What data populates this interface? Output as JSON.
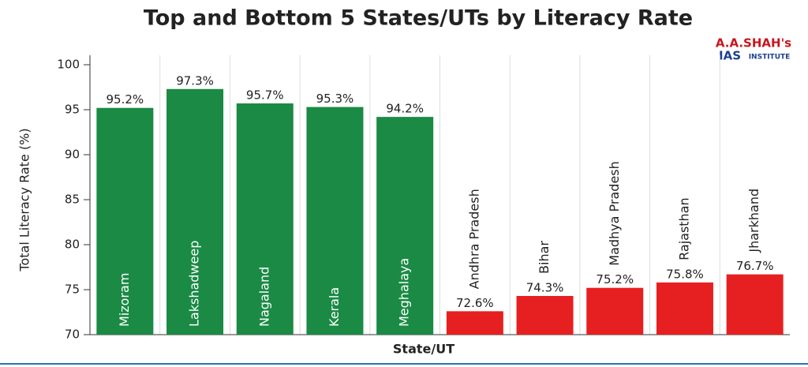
{
  "chart_data": {
    "type": "bar",
    "title": "Top and Bottom 5 States/UTs by Literacy Rate",
    "logo": {
      "line1": "A.A.SHAH's",
      "line2": "IAS",
      "line3": "INSTITUTE"
    },
    "x_label": "State/UT",
    "y_label": "Total Literacy Rate (%)",
    "categories": [
      "Mizoram",
      "Lakshadweep",
      "Nagaland",
      "Kerala",
      "Meghalaya",
      "Andhra Pradesh",
      "Bihar",
      "Madhya Pradesh",
      "Rajasthan",
      "Jharkhand"
    ],
    "values": [
      95.2,
      97.3,
      95.7,
      95.3,
      94.2,
      72.6,
      74.3,
      75.2,
      75.8,
      76.7
    ],
    "value_labels": [
      "95.2%",
      "97.3%",
      "95.7%",
      "95.3%",
      "94.2%",
      "72.6%",
      "74.3%",
      "75.2%",
      "75.8%",
      "76.7%"
    ],
    "colors": [
      "#1a8a44",
      "#1a8a44",
      "#1a8a44",
      "#1a8a44",
      "#1a8a44",
      "#e62020",
      "#e62020",
      "#e62020",
      "#e62020",
      "#e62020"
    ],
    "ylim": [
      70,
      100
    ],
    "yticks": [
      70,
      75,
      80,
      85,
      90,
      95,
      100
    ]
  }
}
